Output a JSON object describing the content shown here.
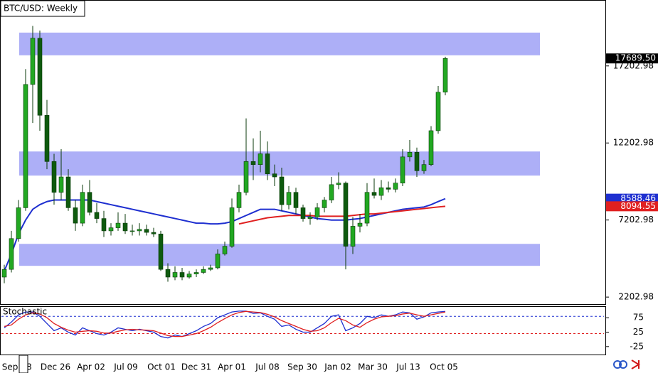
{
  "chart_data": {
    "type": "candlestick",
    "title": "BTC/USD: Weekly",
    "xlabels": [
      "Sep",
      "8",
      "Dec 26",
      "Apr 02",
      "Jul 09",
      "Oct 01",
      "Dec 31",
      "Apr 01",
      "Jul 08",
      "Sep 30",
      "Jan 02",
      "Mar 30",
      "Jul 13",
      "Oct 05"
    ],
    "open": [
      3500,
      4000,
      6000,
      8000,
      16000,
      19000,
      14000,
      11000,
      9000,
      10000,
      8000,
      7000,
      9000,
      7700,
      7300,
      6500,
      6700,
      7000,
      6500,
      6500,
      6600,
      6400,
      6300,
      4000,
      3500,
      3800,
      3500,
      3700,
      3800,
      4000,
      4100,
      5000,
      5500,
      8000,
      9000,
      11000,
      10800,
      11500,
      10200,
      10000,
      8200,
      9000,
      8000,
      7300,
      7400,
      8000,
      8500,
      9500,
      9600,
      5500,
      6800,
      7000,
      9000,
      8800,
      9300,
      9200,
      9600,
      11300,
      11600,
      10400,
      10800,
      13000,
      15500
    ],
    "high": [
      4300,
      6500,
      8500,
      17000,
      19800,
      19500,
      15000,
      11500,
      11800,
      10500,
      8500,
      9500,
      9800,
      8300,
      7800,
      7000,
      7700,
      7600,
      6900,
      7000,
      6900,
      6700,
      6500,
      4400,
      4200,
      4100,
      3900,
      4000,
      4200,
      4300,
      5300,
      5800,
      8600,
      9500,
      13800,
      12500,
      13000,
      12300,
      10800,
      10600,
      9400,
      9300,
      8200,
      7700,
      8300,
      8700,
      10000,
      10300,
      9700,
      7400,
      7600,
      9600,
      9900,
      9800,
      9700,
      9900,
      11800,
      12400,
      11900,
      11100,
      13300,
      15900,
      17800
    ],
    "low": [
      3100,
      3800,
      5800,
      7800,
      13500,
      13000,
      10500,
      8200,
      8500,
      7800,
      6500,
      6800,
      7500,
      7000,
      6100,
      6200,
      6500,
      6300,
      6200,
      6200,
      6200,
      6100,
      3900,
      3200,
      3300,
      3300,
      3400,
      3500,
      3700,
      3900,
      4000,
      4900,
      5400,
      7700,
      8800,
      9800,
      10300,
      9800,
      9400,
      7800,
      7900,
      7600,
      7100,
      6900,
      7200,
      7700,
      8300,
      9200,
      4000,
      5000,
      6400,
      6800,
      8600,
      8500,
      9000,
      9000,
      9400,
      11000,
      10000,
      10200,
      10700,
      12800,
      15300
    ],
    "close": [
      4000,
      6000,
      8000,
      16000,
      19000,
      14000,
      11000,
      9000,
      10000,
      8000,
      7000,
      9000,
      7700,
      7300,
      6500,
      6700,
      7000,
      6500,
      6500,
      6600,
      6400,
      6300,
      4000,
      3500,
      3800,
      3500,
      3700,
      3800,
      4000,
      4100,
      5000,
      5500,
      8000,
      9000,
      11000,
      10800,
      11500,
      10200,
      10000,
      8200,
      9000,
      8000,
      7300,
      7400,
      8000,
      8500,
      9500,
      9600,
      5500,
      6800,
      7000,
      9000,
      8800,
      9300,
      9200,
      9600,
      11300,
      11600,
      10400,
      10800,
      13000,
      15500,
      17689.5
    ],
    "up_color": "#22a822",
    "down_color": "#0e5a0e",
    "moving_averages": [
      {
        "color": "#1e2fd0",
        "values": [
          3900,
          5000,
          6300,
          7200,
          7900,
          8200,
          8400,
          8500,
          8500,
          8500,
          8500,
          8500,
          8500,
          8400,
          8300,
          8200,
          8100,
          8000,
          7900,
          7800,
          7700,
          7600,
          7500,
          7400,
          7300,
          7200,
          7100,
          7000,
          7000,
          6950,
          6950,
          7000,
          7100,
          7300,
          7500,
          7700,
          7900,
          7900,
          7900,
          7800,
          7700,
          7600,
          7500,
          7400,
          7300,
          7250,
          7200,
          7200,
          7200,
          7250,
          7300,
          7400,
          7500,
          7600,
          7700,
          7800,
          7900,
          7950,
          8000,
          8050,
          8200,
          8400,
          8588.46
        ]
      },
      {
        "color": "#e02020",
        "values": [
          null,
          null,
          null,
          null,
          null,
          null,
          null,
          null,
          null,
          null,
          null,
          null,
          null,
          null,
          null,
          null,
          null,
          null,
          null,
          null,
          null,
          null,
          null,
          null,
          null,
          null,
          null,
          null,
          null,
          null,
          null,
          null,
          null,
          6950,
          7050,
          7150,
          7250,
          7350,
          7400,
          7450,
          7500,
          7500,
          7500,
          7500,
          7450,
          7450,
          7450,
          7450,
          7450,
          7500,
          7550,
          7600,
          7600,
          7650,
          7700,
          7750,
          7800,
          7850,
          7900,
          7950,
          8000,
          8050,
          8094.55
        ]
      }
    ],
    "zones": [
      [
        17893,
        19365
      ],
      [
        10087,
        11651
      ],
      [
        4230,
        5656
      ]
    ],
    "zone_color": "#adaff7",
    "ylim": [
      1748,
      21435
    ],
    "yticks": [
      17202.98,
      12202.98,
      7202.98,
      2202.98
    ],
    "price_labels": [
      {
        "value": 17689.5,
        "label": "17689.50",
        "color": "#000000"
      },
      {
        "value": 8588.46,
        "label": "8588.46",
        "color": "#1e2fd0"
      },
      {
        "value": 8094.55,
        "label": "8094.55",
        "color": "#e02020"
      }
    ],
    "stochastic": {
      "title": "Stochastic",
      "ylim": [
        -52.5,
        112.5
      ],
      "yticks": [
        75,
        25,
        -25
      ],
      "levels": [
        {
          "value": 80,
          "color": "#1e2fd0"
        },
        {
          "value": 20,
          "color": "#e02020"
        }
      ],
      "series": [
        {
          "color": "#1e2fd0",
          "values": [
            40,
            60,
            85,
            95,
            95,
            80,
            55,
            30,
            40,
            25,
            15,
            40,
            30,
            20,
            15,
            25,
            40,
            35,
            30,
            35,
            30,
            25,
            10,
            5,
            15,
            10,
            20,
            30,
            45,
            55,
            75,
            85,
            95,
            98,
            98,
            90,
            92,
            80,
            70,
            45,
            50,
            35,
            25,
            25,
            40,
            55,
            80,
            85,
            30,
            40,
            55,
            80,
            75,
            85,
            80,
            85,
            95,
            92,
            70,
            78,
            92,
            95,
            97
          ]
        },
        {
          "color": "#e02020",
          "values": [
            45,
            50,
            70,
            85,
            92,
            88,
            75,
            55,
            42,
            32,
            25,
            28,
            30,
            28,
            22,
            22,
            28,
            33,
            35,
            33,
            32,
            30,
            22,
            13,
            10,
            10,
            15,
            20,
            30,
            42,
            58,
            72,
            85,
            93,
            97,
            95,
            93,
            87,
            78,
            65,
            55,
            45,
            35,
            28,
            30,
            40,
            58,
            73,
            65,
            50,
            42,
            58,
            70,
            78,
            80,
            82,
            88,
            91,
            85,
            80,
            85,
            90,
            95
          ]
        }
      ]
    }
  }
}
